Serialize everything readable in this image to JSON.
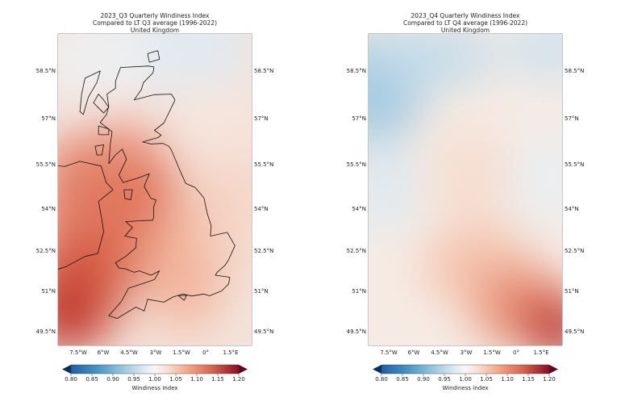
{
  "panels": [
    {
      "title": [
        "2023_Q3 Quarterly Windiness Index",
        "Compared to LT Q3 average (1996-2022)",
        "United Kingdom"
      ],
      "lat_labels": [
        "58.5°N",
        "57°N",
        "55.5°N",
        "54°N",
        "52.5°N",
        "51°N",
        "49.5°N"
      ],
      "lon_labels": [
        "7.5°W",
        "6°W",
        "4.5°W",
        "3°W",
        "1.5°W",
        "0°",
        "1.5°E"
      ],
      "colorbar": {
        "ticks": [
          "0.80",
          "0.85",
          "0.90",
          "0.95",
          "1.00",
          "1.05",
          "1.10",
          "1.15",
          "1.20"
        ],
        "label": "Windiness Index"
      }
    },
    {
      "title": [
        "2023_Q4 Quarterly Windiness Index",
        "Compared to LT Q4 average (1996-2022)",
        "United Kingdom"
      ],
      "lat_labels": [
        "58.5°N",
        "57°N",
        "55.5°N",
        "54°N",
        "52.5°N",
        "51°N",
        "49.5°N"
      ],
      "lon_labels": [
        "7.5°W",
        "6°W",
        "4.5°W",
        "3°W",
        "1.5°W",
        "0°",
        "1.5°E"
      ],
      "colorbar": {
        "ticks": [
          "0.80",
          "0.85",
          "0.90",
          "0.95",
          "1.00",
          "1.05",
          "1.10",
          "1.15",
          "1.20"
        ],
        "label": "Windiness Index"
      }
    }
  ]
}
